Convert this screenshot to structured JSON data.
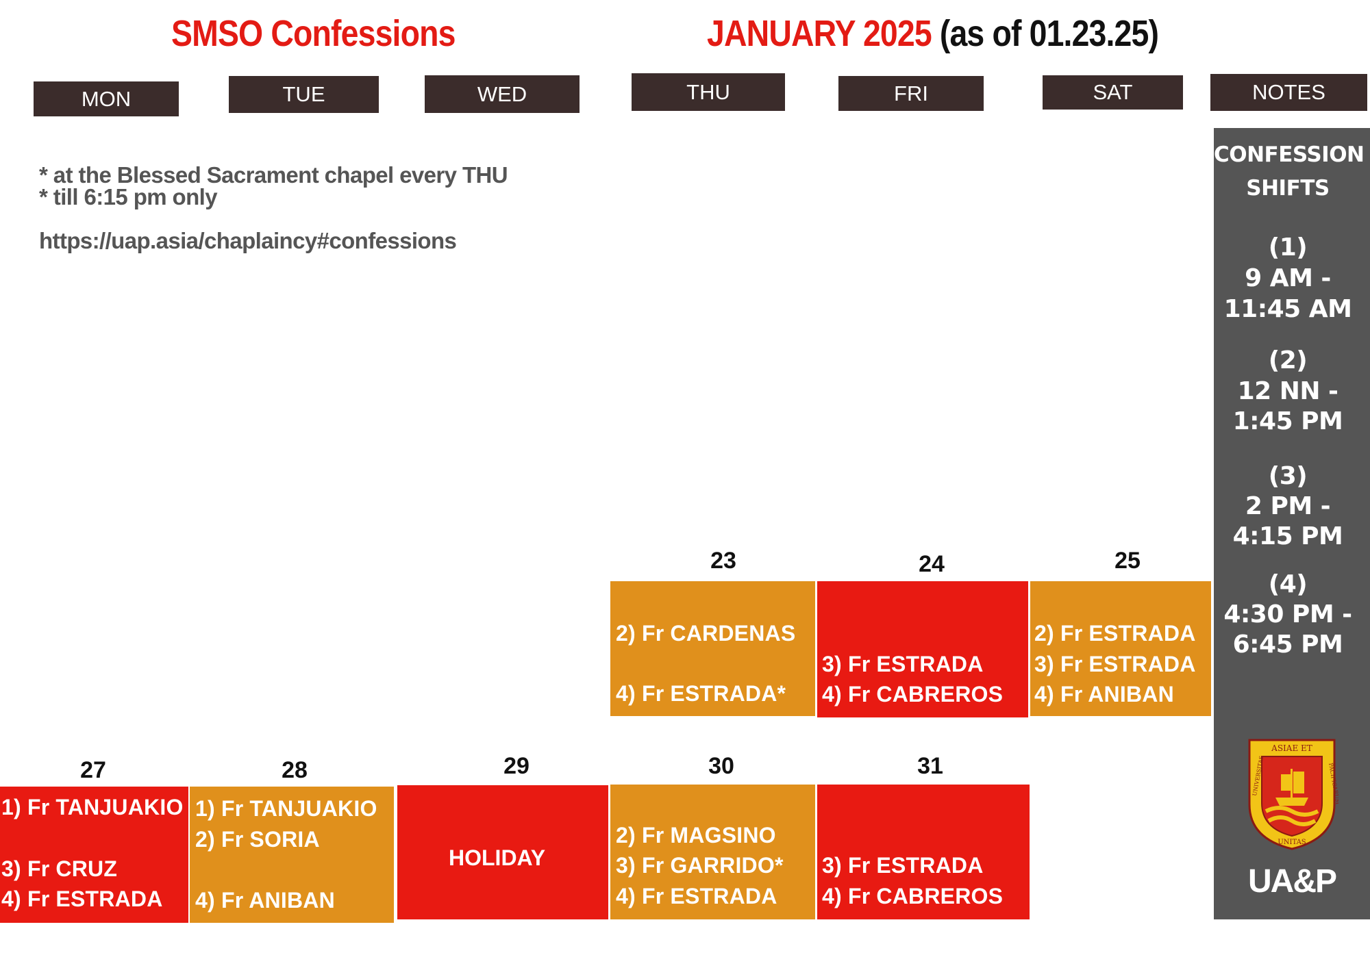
{
  "header": {
    "left_title": "SMSO Confessions",
    "month_title": "JANUARY 2025",
    "as_of": " (as of 01.23.25)"
  },
  "days": [
    "MON",
    "TUE",
    "WED",
    "THU",
    "FRI",
    "SAT",
    "NOTES"
  ],
  "notes": {
    "line1": "* at the Blessed Sacrament chapel every THU",
    "line2": "* till 6:15 pm only",
    "link": "https://uap.asia/chaplaincy#confessions"
  },
  "sidebar": {
    "heading1": "CONFESSION",
    "heading2": "SHIFTS",
    "shifts": [
      {
        "num": "(1)",
        "line1": "9 AM -",
        "line2": "11:45 AM"
      },
      {
        "num": "(2)",
        "line1": "12 NN -",
        "line2": "1:45 PM"
      },
      {
        "num": "(3)",
        "line1": "2 PM -",
        "line2": "4:15 PM"
      },
      {
        "num": "(4)",
        "line1": "4:30 PM -",
        "line2": "6:45 PM"
      }
    ],
    "seal_top": "ASIAE ET",
    "seal_right": "PACIFICARUM",
    "seal_left": "UNIVERSITAS",
    "seal_bottom": "UNITAS",
    "logo": "UA&P"
  },
  "week1": {
    "d23": {
      "date": "23",
      "e1": "2) Fr CARDENAS",
      "e2": "4) Fr ESTRADA*"
    },
    "d24": {
      "date": "24",
      "e1": "3) Fr ESTRADA",
      "e2": "4) Fr CABREROS"
    },
    "d25": {
      "date": "25",
      "e1": "2) Fr ESTRADA",
      "e2": "3) Fr ESTRADA",
      "e3": "4) Fr ANIBAN"
    }
  },
  "week2": {
    "d27": {
      "date": "27",
      "e1": "1) Fr TANJUAKIO",
      "e2": "3) Fr CRUZ",
      "e3": "4) Fr ESTRADA"
    },
    "d28": {
      "date": "28",
      "e1": "1) Fr TANJUAKIO",
      "e2": "2) Fr SORIA",
      "e3": "4) Fr  ANIBAN"
    },
    "d29": {
      "date": "29",
      "label": "HOLIDAY"
    },
    "d30": {
      "date": "30",
      "e1": "2) Fr MAGSINO",
      "e2": "3) Fr GARRIDO*",
      "e3": "4) Fr ESTRADA"
    },
    "d31": {
      "date": "31",
      "e1": "3) Fr ESTRADA",
      "e2": "4) Fr CABREROS"
    }
  },
  "colors": {
    "header_bar": "#3b2c2b",
    "title_red": "#e31b14",
    "cell_orange": "#e0901c",
    "cell_red": "#e81a12",
    "sidebar_gray": "#555555"
  }
}
